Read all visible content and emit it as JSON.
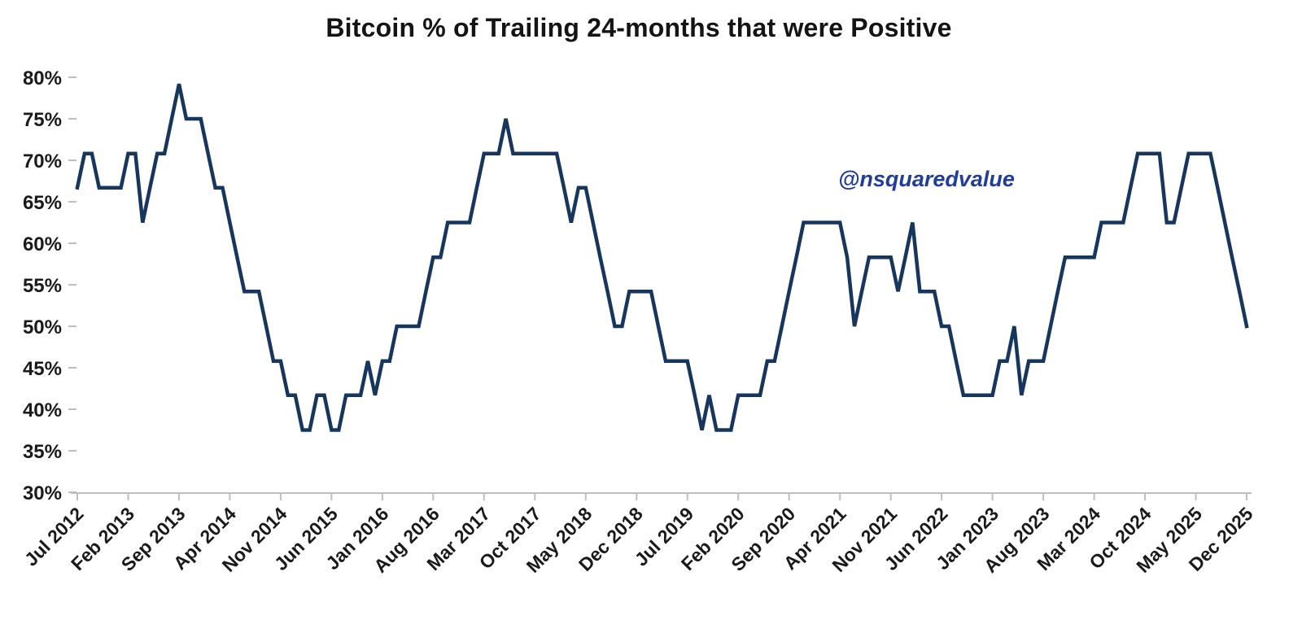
{
  "page": {
    "background": "#ffffff"
  },
  "watermark": {
    "text": "@nsquaredvalue",
    "color": "#1f3d99"
  },
  "chart_data": {
    "type": "line",
    "title": "Bitcoin % of Trailing 24-months that were Positive",
    "series_name": "Bitcoin % of trailing 24 months that were positive",
    "x_start": "Jul 2012",
    "x_end": "Dec 2025",
    "frequency": "monthly",
    "x_tick_labels": [
      "Jul 2012",
      "Feb 2013",
      "Sep 2013",
      "Apr 2014",
      "Nov 2014",
      "Jun 2015",
      "Jan 2016",
      "Aug 2016",
      "Mar 2017",
      "Oct 2017",
      "May 2018",
      "Dec 2018",
      "Jul 2019",
      "Feb 2020",
      "Sep 2020",
      "Apr 2021",
      "Nov 2021",
      "Jun 2022",
      "Jan 2023",
      "Aug 2023",
      "Mar 2024",
      "Oct 2024",
      "May 2025",
      "Dec 2025"
    ],
    "y_ticks": [
      80,
      75,
      70,
      65,
      60,
      55,
      50,
      45,
      40,
      35,
      30
    ],
    "y_tick_suffix": "%",
    "ylim": [
      30,
      80
    ],
    "grid": false,
    "legend": "none",
    "line_color": "#17365d",
    "axis_color": "#bfbfbf",
    "values": [
      66.7,
      70.8,
      70.8,
      66.7,
      66.7,
      66.7,
      66.7,
      70.8,
      70.8,
      62.5,
      66.7,
      70.8,
      70.8,
      75.0,
      79.2,
      75.0,
      75.0,
      75.0,
      70.8,
      66.7,
      66.7,
      62.5,
      58.3,
      54.2,
      54.2,
      54.2,
      50.0,
      45.8,
      45.8,
      41.7,
      41.7,
      37.5,
      37.5,
      41.7,
      41.7,
      37.5,
      37.5,
      41.7,
      41.7,
      41.7,
      45.8,
      41.7,
      45.8,
      45.8,
      50.0,
      50.0,
      50.0,
      50.0,
      54.2,
      58.3,
      58.3,
      62.5,
      62.5,
      62.5,
      62.5,
      66.7,
      70.8,
      70.8,
      70.8,
      75.0,
      70.8,
      70.8,
      70.8,
      70.8,
      70.8,
      70.8,
      70.8,
      66.7,
      62.5,
      66.7,
      66.7,
      62.5,
      58.3,
      54.2,
      50.0,
      50.0,
      54.2,
      54.2,
      54.2,
      54.2,
      50.0,
      45.8,
      45.8,
      45.8,
      45.8,
      41.7,
      37.5,
      41.7,
      37.5,
      37.5,
      37.5,
      41.7,
      41.7,
      41.7,
      41.7,
      45.8,
      45.8,
      50.0,
      54.2,
      58.3,
      62.5,
      62.5,
      62.5,
      62.5,
      62.5,
      62.5,
      58.3,
      50.0,
      54.2,
      58.3,
      58.3,
      58.3,
      58.3,
      54.2,
      58.3,
      62.5,
      54.2,
      54.2,
      54.2,
      50.0,
      50.0,
      45.8,
      41.7,
      41.7,
      41.7,
      41.7,
      41.7,
      45.8,
      45.8,
      50.0,
      41.7,
      45.8,
      45.8,
      45.8,
      50.0,
      54.2,
      58.3,
      58.3,
      58.3,
      58.3,
      58.3,
      62.5,
      62.5,
      62.5,
      62.5,
      66.7,
      70.8,
      70.8,
      70.8,
      70.8,
      62.5,
      62.5,
      66.7,
      70.8,
      70.8,
      70.8,
      70.8,
      66.7,
      62.5,
      58.3,
      54.2,
      50.0
    ]
  }
}
